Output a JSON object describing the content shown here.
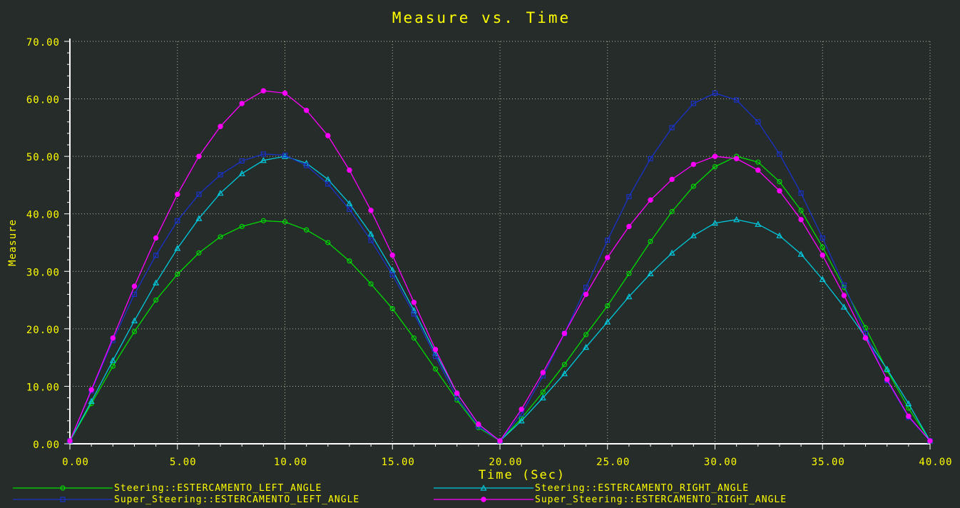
{
  "chart_data": {
    "type": "line",
    "title": "Measure vs. Time",
    "xlabel": "Time (Sec)",
    "ylabel": "Measure",
    "xlim": [
      0,
      40
    ],
    "ylim": [
      0,
      70
    ],
    "x_ticks": [
      "0.00",
      "5.00",
      "10.00",
      "15.00",
      "20.00",
      "25.00",
      "30.00",
      "35.00",
      "40.00"
    ],
    "y_ticks": [
      "0.00",
      "10.00",
      "20.00",
      "30.00",
      "40.00",
      "50.00",
      "60.00",
      "70.00"
    ],
    "grid": true,
    "legend_position": "bottom",
    "x": [
      0,
      1,
      2,
      3,
      4,
      5,
      6,
      7,
      8,
      9,
      10,
      11,
      12,
      13,
      14,
      15,
      16,
      17,
      18,
      19,
      20,
      21,
      22,
      23,
      24,
      25,
      26,
      27,
      28,
      29,
      30,
      31,
      32,
      33,
      34,
      35,
      36,
      37,
      38,
      39,
      40
    ],
    "series": [
      {
        "name": "Steering::ESTERCAMENTO_LEFT_ANGLE",
        "color": "#00dd00",
        "marker": "circle",
        "values": [
          0.5,
          7.0,
          13.5,
          19.5,
          25.0,
          29.5,
          33.2,
          36.0,
          37.8,
          38.8,
          38.6,
          37.2,
          35.0,
          31.8,
          27.8,
          23.5,
          18.4,
          13.0,
          7.6,
          2.8,
          0.5,
          4.4,
          9.0,
          13.8,
          19.0,
          24.0,
          29.6,
          35.2,
          40.4,
          44.8,
          48.2,
          50.0,
          49.0,
          45.6,
          40.6,
          34.2,
          27.2,
          20.2,
          12.8,
          6.2,
          0.5
        ]
      },
      {
        "name": "Steering::ESTERCAMENTO_RIGHT_ANGLE",
        "color": "#00c8dc",
        "marker": "triangle",
        "values": [
          0.5,
          7.4,
          14.5,
          21.4,
          28.0,
          34.0,
          39.2,
          43.6,
          47.0,
          49.3,
          50.0,
          48.8,
          46.0,
          41.8,
          36.5,
          30.2,
          23.2,
          15.8,
          8.8,
          3.4,
          0.5,
          4.0,
          8.0,
          12.2,
          16.8,
          21.2,
          25.6,
          29.6,
          33.2,
          36.2,
          38.4,
          39.0,
          38.2,
          36.2,
          33.0,
          28.6,
          23.8,
          18.6,
          13.0,
          7.0,
          0.5
        ]
      },
      {
        "name": "Super_Steering::ESTERCAMENTO_LEFT_ANGLE",
        "color": "#1a32c8",
        "marker": "square",
        "values": [
          0.5,
          9.2,
          18.0,
          26.0,
          32.8,
          38.8,
          43.4,
          46.8,
          49.2,
          50.4,
          50.2,
          48.4,
          45.2,
          40.8,
          35.4,
          29.4,
          22.6,
          15.2,
          8.0,
          3.0,
          0.5,
          5.2,
          11.8,
          19.2,
          27.2,
          35.4,
          43.0,
          49.6,
          55.0,
          59.2,
          61.0,
          59.8,
          56.0,
          50.4,
          43.6,
          35.8,
          27.6,
          19.2,
          11.0,
          4.6,
          0.5
        ]
      },
      {
        "name": "Super_Steering::ESTERCAMENTO_RIGHT_ANGLE",
        "color": "#ff00ff",
        "marker": "filled-circle",
        "values": [
          0.5,
          9.4,
          18.4,
          27.4,
          35.8,
          43.4,
          50.0,
          55.2,
          59.2,
          61.4,
          61.0,
          58.0,
          53.6,
          47.6,
          40.6,
          32.8,
          24.6,
          16.4,
          8.8,
          3.4,
          0.5,
          6.0,
          12.4,
          19.2,
          26.0,
          32.4,
          37.8,
          42.4,
          46.0,
          48.6,
          50.0,
          49.6,
          47.6,
          44.0,
          39.0,
          32.8,
          25.8,
          18.4,
          11.2,
          4.8,
          0.5
        ]
      }
    ]
  }
}
